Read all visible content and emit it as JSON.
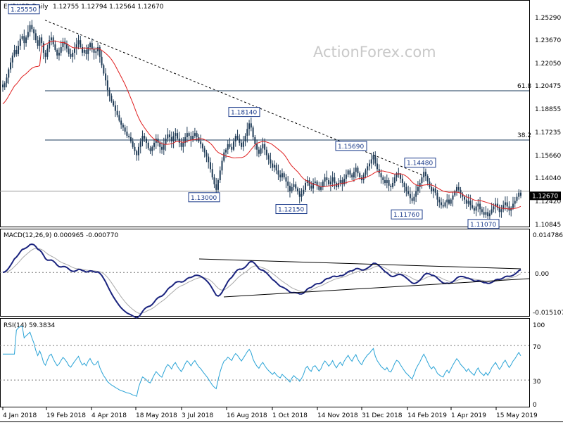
{
  "chart_data": [
    {
      "type": "candlestick",
      "pane": "price",
      "title": "EURUSD,Daily",
      "ohlc": "1.12755 1.12794 1.12564 1.12670",
      "watermark": "ActionForex.com",
      "y_ticks": [
        "1.25290",
        "1.23670",
        "1.22050",
        "1.20475",
        "1.18855",
        "1.17235",
        "1.15660",
        "1.14040",
        "1.12420",
        "1.10845"
      ],
      "ylim": [
        1.1045,
        1.265
      ],
      "current_price": "1.12670",
      "fib_levels": [
        {
          "label": "61.8",
          "value": 1.2025
        },
        {
          "label": "38.2",
          "value": 1.167
        }
      ],
      "horizontal_level": 1.13,
      "annotations": [
        {
          "label": "1.25550",
          "value": 1.2555
        },
        {
          "label": "1.18140",
          "value": 1.1814
        },
        {
          "label": "1.15690",
          "value": 1.1569
        },
        {
          "label": "1.14480",
          "value": 1.1448
        },
        {
          "label": "1.13000",
          "value": 1.13
        },
        {
          "label": "1.12150",
          "value": 1.1215
        },
        {
          "label": "1.11760",
          "value": 1.1176
        },
        {
          "label": "1.11070",
          "value": 1.1107
        }
      ],
      "closes": [
        1.205,
        1.208,
        1.212,
        1.218,
        1.223,
        1.228,
        1.232,
        1.229,
        1.235,
        1.24,
        1.242,
        1.237,
        1.241,
        1.245,
        1.25,
        1.247,
        1.244,
        1.239,
        1.235,
        1.241,
        1.237,
        1.23,
        1.227,
        1.233,
        1.239,
        1.241,
        1.236,
        1.232,
        1.228,
        1.23,
        1.234,
        1.238,
        1.236,
        1.233,
        1.229,
        1.227,
        1.23,
        1.233,
        1.236,
        1.239,
        1.234,
        1.23,
        1.232,
        1.229,
        1.234,
        1.237,
        1.233,
        1.23,
        1.231,
        1.234,
        1.227,
        1.221,
        1.215,
        1.21,
        1.203,
        1.199,
        1.195,
        1.192,
        1.188,
        1.185,
        1.181,
        1.178,
        1.176,
        1.173,
        1.17,
        1.169,
        1.166,
        1.162,
        1.159,
        1.156,
        1.162,
        1.166,
        1.17,
        1.168,
        1.165,
        1.161,
        1.159,
        1.162,
        1.165,
        1.168,
        1.165,
        1.162,
        1.16,
        1.164,
        1.168,
        1.171,
        1.169,
        1.166,
        1.17,
        1.172,
        1.168,
        1.165,
        1.162,
        1.165,
        1.169,
        1.172,
        1.17,
        1.167,
        1.17,
        1.172,
        1.169,
        1.166,
        1.164,
        1.161,
        1.158,
        1.155,
        1.151,
        1.146,
        1.14,
        1.135,
        1.131,
        1.138,
        1.145,
        1.152,
        1.158,
        1.16,
        1.164,
        1.162,
        1.16,
        1.166,
        1.17,
        1.168,
        1.165,
        1.162,
        1.166,
        1.17,
        1.175,
        1.179,
        1.176,
        1.169,
        1.164,
        1.16,
        1.157,
        1.161,
        1.164,
        1.16,
        1.156,
        1.153,
        1.15,
        1.147,
        1.149,
        1.145,
        1.142,
        1.14,
        1.143,
        1.14,
        1.137,
        1.134,
        1.13,
        1.133,
        1.135,
        1.132,
        1.13,
        1.126,
        1.128,
        1.131,
        1.136,
        1.138,
        1.134,
        1.132,
        1.136,
        1.137,
        1.134,
        1.131,
        1.133,
        1.137,
        1.14,
        1.138,
        1.135,
        1.137,
        1.14,
        1.136,
        1.133,
        1.136,
        1.138,
        1.135,
        1.139,
        1.142,
        1.145,
        1.142,
        1.14,
        1.144,
        1.147,
        1.143,
        1.14,
        1.138,
        1.142,
        1.145,
        1.148,
        1.15,
        1.153,
        1.156,
        1.15,
        1.146,
        1.143,
        1.14,
        1.138,
        1.136,
        1.138,
        1.134,
        1.133,
        1.136,
        1.14,
        1.143,
        1.142,
        1.139,
        1.136,
        1.133,
        1.13,
        1.128,
        1.125,
        1.123,
        1.126,
        1.13,
        1.133,
        1.136,
        1.14,
        1.144,
        1.141,
        1.137,
        1.133,
        1.13,
        1.132,
        1.129,
        1.124,
        1.122,
        1.12,
        1.119,
        1.122,
        1.124,
        1.121,
        1.124,
        1.127,
        1.13,
        1.133,
        1.131,
        1.128,
        1.126,
        1.124,
        1.121,
        1.123,
        1.12,
        1.118,
        1.116,
        1.119,
        1.121,
        1.117,
        1.115,
        1.113,
        1.115,
        1.112,
        1.114,
        1.117,
        1.119,
        1.121,
        1.118,
        1.115,
        1.117,
        1.12,
        1.122,
        1.119,
        1.116,
        1.118,
        1.121,
        1.123,
        1.126,
        1.129,
        1.1267
      ]
    },
    {
      "type": "line",
      "pane": "macd",
      "title": "MACD(12,26,9) 0.000965 -0.000770",
      "y_ticks": [
        "0.014786",
        "0.00",
        "-0.015107"
      ],
      "ylim": [
        -0.0162,
        0.0158
      ],
      "zero_line": 0.0
    },
    {
      "type": "line",
      "pane": "rsi",
      "title": "RSI(14) 59.3834",
      "y_ticks": [
        "100",
        "70",
        "30",
        "0"
      ],
      "ylim": [
        0,
        100
      ],
      "levels": [
        70,
        30
      ]
    },
    {
      "type": "axis",
      "x_tick_labels": [
        "4 Jan 2018",
        "19 Feb 2018",
        "4 Apr 2018",
        "18 May 2018",
        "3 Jul 2018",
        "16 Aug 2018",
        "1 Oct 2018",
        "14 Nov 2018",
        "31 Dec 2018",
        "14 Feb 2019",
        "1 Apr 2019",
        "15 May 2019"
      ]
    }
  ]
}
